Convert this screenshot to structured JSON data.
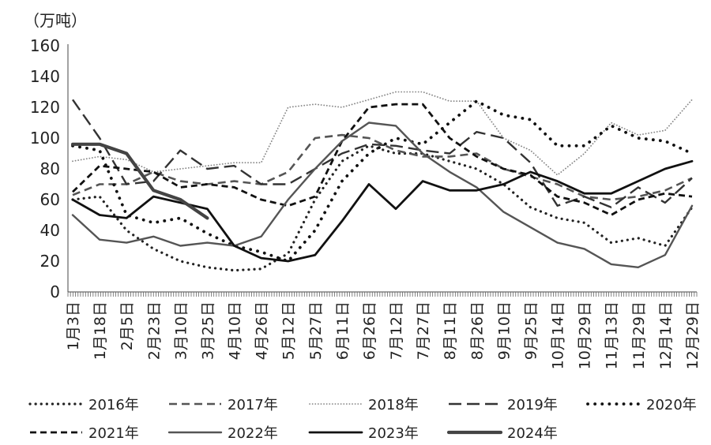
{
  "chart_data": {
    "type": "line",
    "unit_label": "（万吨）",
    "ylim": [
      0,
      160
    ],
    "yticks": [
      0,
      20,
      40,
      60,
      80,
      100,
      120,
      140,
      160
    ],
    "x_ticklabels": [
      "1月3日",
      "1月18日",
      "2月5日",
      "2月23日",
      "3月10日",
      "3月25日",
      "4月10日",
      "4月26日",
      "5月12日",
      "5月27日",
      "6月11日",
      "6月26日",
      "7月12日",
      "7月27日",
      "8月11日",
      "8月26日",
      "9月10日",
      "9月25日",
      "10月14日",
      "10月29日",
      "11月13日",
      "11月29日",
      "12月14日",
      "12月29日"
    ],
    "x_points": 24,
    "series": [
      {
        "name": "2016年",
        "style": "dot-round",
        "color": "#222222",
        "values": [
          60,
          62,
          40,
          28,
          20,
          16,
          14,
          15,
          25,
          60,
          85,
          95,
          90,
          90,
          85,
          80,
          70,
          55,
          48,
          45,
          32,
          35,
          30,
          55
        ]
      },
      {
        "name": "2017年",
        "style": "dash-mid",
        "color": "#555555",
        "values": [
          63,
          70,
          70,
          78,
          72,
          70,
          72,
          70,
          78,
          100,
          102,
          100,
          92,
          88,
          88,
          90,
          80,
          75,
          70,
          62,
          60,
          62,
          66,
          74
        ]
      },
      {
        "name": "2018年",
        "style": "dot-fine",
        "color": "#888888",
        "values": [
          85,
          88,
          86,
          78,
          80,
          82,
          84,
          84,
          120,
          122,
          120,
          125,
          130,
          130,
          124,
          124,
          100,
          92,
          76,
          90,
          110,
          102,
          105,
          125
        ]
      },
      {
        "name": "2019年",
        "style": "dash-long",
        "color": "#333333",
        "values": [
          125,
          100,
          70,
          72,
          92,
          80,
          82,
          70,
          70,
          80,
          90,
          96,
          95,
          92,
          90,
          104,
          100,
          84,
          56,
          62,
          55,
          68,
          58,
          74
        ]
      },
      {
        "name": "2020年",
        "style": "dot-big",
        "color": "#111111",
        "values": [
          95,
          92,
          50,
          45,
          48,
          38,
          30,
          26,
          20,
          40,
          72,
          90,
          100,
          96,
          110,
          124,
          115,
          112,
          95,
          95,
          108,
          100,
          98,
          90
        ]
      },
      {
        "name": "2021年",
        "style": "dash-bold",
        "color": "#111111",
        "values": [
          65,
          82,
          80,
          78,
          68,
          70,
          68,
          60,
          56,
          62,
          98,
          120,
          122,
          122,
          100,
          88,
          80,
          76,
          62,
          58,
          50,
          60,
          64,
          62
        ]
      },
      {
        "name": "2022年",
        "style": "solid",
        "color": "#555555",
        "values": [
          50,
          34,
          32,
          36,
          30,
          32,
          30,
          36,
          60,
          80,
          98,
          110,
          108,
          90,
          78,
          68,
          52,
          42,
          32,
          28,
          18,
          16,
          24,
          56
        ]
      },
      {
        "name": "2023年",
        "style": "solid-bold",
        "color": "#111111",
        "values": [
          60,
          50,
          48,
          62,
          58,
          54,
          30,
          22,
          20,
          24,
          46,
          70,
          54,
          72,
          66,
          66,
          70,
          78,
          72,
          64,
          64,
          72,
          80,
          85
        ]
      },
      {
        "name": "2024年",
        "style": "solid-thick",
        "color": "#444444",
        "values": [
          96,
          96,
          90,
          66,
          60,
          48
        ]
      }
    ]
  }
}
